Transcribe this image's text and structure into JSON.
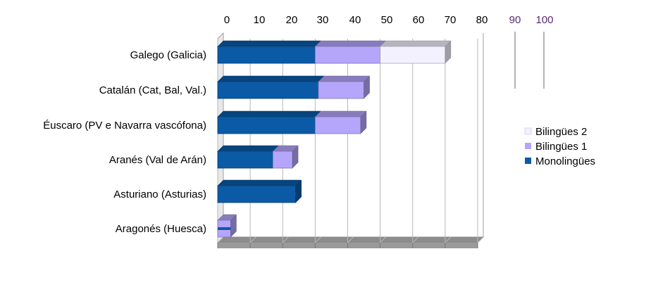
{
  "chart_data": {
    "type": "bar",
    "orientation": "horizontal",
    "stacked": true,
    "three_d": true,
    "categories": [
      "Galego (Galicia)",
      "Catalán (Cat, Bal, Val.)",
      "Éuscaro (PV e Navarra vascófona)",
      "Aranés (Val de Arán)",
      "Asturiano (Asturias)",
      "Aragonés (Huesca)"
    ],
    "series": [
      {
        "name": "Monolingües",
        "values": [
          30,
          31,
          30,
          17,
          24,
          0
        ],
        "color": "#0b5aa6"
      },
      {
        "name": "Bilingües 1",
        "values": [
          20,
          14,
          14,
          6,
          0,
          4
        ],
        "color": "#b5a6fb"
      },
      {
        "name": "Bilingües 2",
        "values": [
          20,
          0,
          0,
          0,
          0,
          0
        ],
        "color": "#f3f1fe"
      }
    ],
    "x_ticks": [
      "0",
      "10",
      "20",
      "30",
      "40",
      "50",
      "60",
      "70",
      "80",
      "90",
      "100"
    ],
    "x_tick_colors": [
      "#000000",
      "#000000",
      "#000000",
      "#000000",
      "#000000",
      "#000000",
      "#000000",
      "#000000",
      "#000000",
      "#5a2a73",
      "#5a2a73"
    ],
    "xlim": [
      0,
      80
    ],
    "grid": true,
    "legend_position": "right",
    "legend_order": [
      "Bilingües 2",
      "Bilingües 1",
      "Monolingües"
    ]
  }
}
